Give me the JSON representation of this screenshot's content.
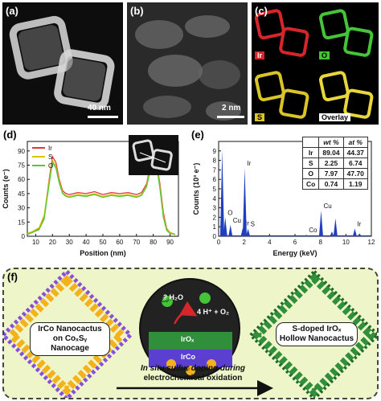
{
  "panels": {
    "a": {
      "label": "(a)",
      "scale": "40 nm"
    },
    "b": {
      "label": "(b)",
      "scale": "2 nm"
    },
    "c": {
      "label": "(c)",
      "maps": [
        {
          "name": "Ir",
          "color": "#d6262b"
        },
        {
          "name": "O",
          "color": "#45c43a"
        },
        {
          "name": "S",
          "color": "#d9c526"
        },
        {
          "name": "Overlay",
          "color": "#e8d63a"
        }
      ]
    },
    "d": {
      "label": "(d)"
    },
    "e": {
      "label": "(e)"
    },
    "f": {
      "label": "(f)"
    }
  },
  "chart_data": [
    {
      "type": "line",
      "panel": "d",
      "xlabel": "Position (nm)",
      "ylabel": "Counts (e⁻)",
      "xlim": [
        5,
        95
      ],
      "ylim": [
        0,
        100
      ],
      "xticks": [
        "10",
        "20",
        "30",
        "40",
        "50",
        "60",
        "70",
        "80",
        "90"
      ],
      "yticks": [
        "0",
        "15",
        "30",
        "45",
        "60",
        "75",
        "90"
      ],
      "legend": "top-left",
      "series": [
        {
          "name": "Ir",
          "color": "#e8323c",
          "x": [
            5,
            8,
            12,
            15,
            18,
            20,
            22,
            24,
            26,
            28,
            30,
            35,
            40,
            45,
            50,
            55,
            60,
            65,
            70,
            73,
            76,
            78,
            80,
            82,
            84,
            86,
            88,
            90,
            93
          ],
          "y": [
            2,
            4,
            8,
            20,
            60,
            84,
            78,
            60,
            48,
            45,
            44,
            46,
            45,
            47,
            44,
            46,
            45,
            46,
            44,
            46,
            55,
            72,
            84,
            78,
            55,
            25,
            8,
            4,
            2
          ]
        },
        {
          "name": "S",
          "color": "#d9c200",
          "x": [
            5,
            8,
            12,
            15,
            18,
            20,
            22,
            24,
            26,
            28,
            30,
            35,
            40,
            45,
            50,
            55,
            60,
            65,
            70,
            73,
            76,
            78,
            80,
            82,
            84,
            86,
            88,
            90,
            93
          ],
          "y": [
            3,
            5,
            9,
            22,
            58,
            80,
            74,
            58,
            46,
            43,
            42,
            44,
            43,
            45,
            42,
            44,
            43,
            44,
            42,
            44,
            53,
            70,
            81,
            76,
            52,
            22,
            7,
            4,
            2
          ]
        },
        {
          "name": "O",
          "color": "#55c93a",
          "x": [
            5,
            8,
            12,
            15,
            18,
            20,
            22,
            24,
            26,
            28,
            30,
            35,
            40,
            45,
            50,
            55,
            60,
            65,
            70,
            73,
            76,
            78,
            80,
            82,
            84,
            86,
            88,
            90,
            93
          ],
          "y": [
            2,
            4,
            7,
            18,
            55,
            78,
            72,
            56,
            45,
            42,
            41,
            43,
            42,
            44,
            41,
            43,
            42,
            43,
            41,
            43,
            52,
            68,
            79,
            74,
            50,
            20,
            6,
            3,
            2
          ]
        }
      ]
    },
    {
      "type": "bar",
      "panel": "e",
      "xlabel": "Energy (keV)",
      "ylabel": "Counts (10³ e⁻)",
      "xlim": [
        0,
        12
      ],
      "ylim": [
        0,
        10
      ],
      "xticks": [
        "0",
        "2",
        "4",
        "6",
        "8",
        "10",
        "12"
      ],
      "yticks": [
        "0",
        "1",
        "2",
        "3",
        "4",
        "5",
        "6",
        "7",
        "8",
        "9"
      ],
      "color": "#1f3fbf",
      "peaks": [
        {
          "x": 0.28,
          "y": 9.1
        },
        {
          "x": 0.52,
          "y": 2.0,
          "label": "O"
        },
        {
          "x": 0.93,
          "y": 1.2,
          "label": "Cu"
        },
        {
          "x": 1.9,
          "y": 0.9,
          "label": "Ir"
        },
        {
          "x": 2.05,
          "y": 7.2,
          "label": "Ir"
        },
        {
          "x": 2.31,
          "y": 0.8,
          "label": "S"
        },
        {
          "x": 6.9,
          "y": 0.15,
          "label": "Co"
        },
        {
          "x": 8.05,
          "y": 2.7,
          "label": "Cu"
        },
        {
          "x": 8.9,
          "y": 0.5
        },
        {
          "x": 9.18,
          "y": 1.9
        },
        {
          "x": 10.7,
          "y": 0.8,
          "label": "Ir"
        },
        {
          "x": 11.07,
          "y": 0.3
        }
      ],
      "table": {
        "header": [
          "",
          "wt %",
          "at %"
        ],
        "rows": [
          [
            "Ir",
            "89.04",
            "44.37"
          ],
          [
            "S",
            "2.25",
            "6.74"
          ],
          [
            "O",
            "7.97",
            "47.70"
          ],
          [
            "Co",
            "0.74",
            "1.19"
          ]
        ]
      }
    }
  ],
  "schematic": {
    "left_label_line1": "IrCo Nanocactus",
    "left_label_line2": "on CoₓSᵧ Nanocage",
    "right_label_line1": "S-doped IrOₓ",
    "right_label_line2": "Hollow Nanocactus",
    "reaction_in": "2 H₂O",
    "reaction_out": "4 H⁺ + O₂",
    "layer_top": "IrOₓ",
    "layer_bottom": "IrCo",
    "ion_co": "Co²⁺",
    "ion_s": "S²⁻",
    "caption_line1": "In situ sulfur doping during",
    "caption_line2": "electrochemical oxidation"
  }
}
